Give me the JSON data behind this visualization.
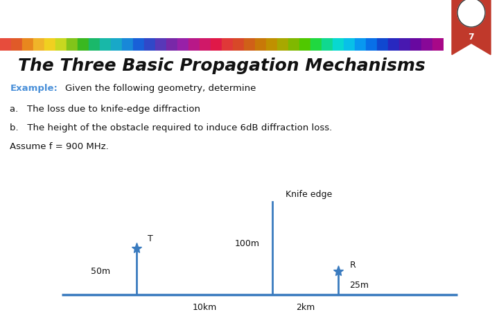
{
  "title": "The Three Basic Propagation Mechanisms",
  "title_fontsize": 18,
  "header_bg": "#111111",
  "badge_color": "#c0392b",
  "badge_number": "7",
  "example_label": "Example:",
  "example_color": "#4a90d9",
  "text_line0": "Given the following geometry, determine",
  "text_line1": "a.   The loss due to knife-edge diffraction",
  "text_line2": "b.   The height of the obstacle required to induce 6dB diffraction loss.",
  "text_line3": "Assume f = 900 MHz.",
  "diagram_color": "#3a7bbf",
  "text_color": "#111111",
  "bg_color": "#ffffff",
  "stripe_colors": [
    "#e74c3c",
    "#e05a28",
    "#e8871e",
    "#f0b429",
    "#f0d020",
    "#c8d820",
    "#82c41a",
    "#3ab820",
    "#1ab86a",
    "#18b8a8",
    "#18a8c8",
    "#1888d8",
    "#1860d8",
    "#3048c8",
    "#5838b8",
    "#7828a8",
    "#9820a8",
    "#b81888",
    "#d01868",
    "#e01848",
    "#e03838",
    "#d84828",
    "#d06018",
    "#c87808",
    "#c09000",
    "#a8a800",
    "#80b800",
    "#50c800",
    "#20d840",
    "#10d890",
    "#08d8d0",
    "#08c0e8",
    "#0898f0",
    "#0870e8",
    "#1048d0",
    "#2828c0",
    "#4818b0",
    "#6808a0",
    "#880898",
    "#a80888"
  ]
}
